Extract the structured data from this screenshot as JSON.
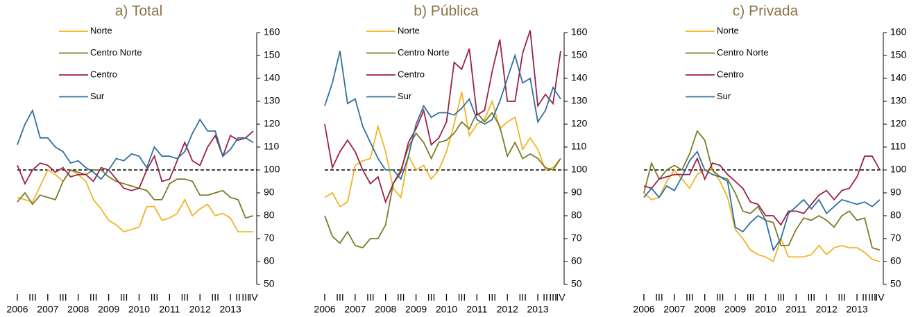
{
  "chart_data": [
    {
      "type": "line",
      "title": "a) Total",
      "categories": [
        "I",
        null,
        "III",
        null,
        "I",
        null,
        "III",
        null,
        "I",
        null,
        "III",
        null,
        "I",
        null,
        "III",
        null,
        "I",
        null,
        "III",
        null,
        "I",
        null,
        "III",
        null,
        "I",
        null,
        "III",
        null,
        "I",
        "II",
        "III",
        "IV"
      ],
      "year_labels": [
        "2006",
        "2007",
        "2008",
        "2009",
        "2010",
        "2011",
        "2012",
        "2013"
      ],
      "ylim": [
        50,
        160
      ],
      "yticks": [
        50,
        60,
        70,
        80,
        90,
        100,
        110,
        120,
        130,
        140,
        150,
        160
      ],
      "reference_line": 100,
      "series": [
        {
          "name": "Norte",
          "color": "#f0b323",
          "values": [
            88,
            87,
            86,
            93,
            100,
            98,
            95,
            100,
            98,
            95,
            87,
            83,
            78,
            76,
            73,
            74,
            75,
            84,
            84,
            78,
            79,
            81,
            87,
            80,
            83,
            85,
            80,
            81,
            79,
            73,
            73,
            73
          ]
        },
        {
          "name": "Centro Norte",
          "color": "#7b7a26",
          "values": [
            86,
            90,
            85,
            89,
            88,
            87,
            95,
            100,
            99,
            98,
            100,
            100,
            97,
            95,
            94,
            93,
            92,
            91,
            87,
            87,
            94,
            96,
            96,
            95,
            89,
            89,
            90,
            91,
            88,
            87,
            79,
            80
          ]
        },
        {
          "name": "Centro",
          "color": "#9b1f45",
          "values": [
            102,
            94,
            100,
            103,
            102,
            99,
            101,
            97,
            98,
            98,
            95,
            101,
            100,
            96,
            92,
            91,
            92,
            100,
            106,
            95,
            96,
            104,
            112,
            104,
            102,
            110,
            115,
            106,
            115,
            113,
            114,
            117
          ]
        },
        {
          "name": "Sur",
          "color": "#2f6f9f",
          "values": [
            111,
            120,
            126,
            114,
            114,
            110,
            108,
            103,
            104,
            101,
            99,
            96,
            100,
            105,
            104,
            107,
            106,
            101,
            110,
            106,
            106,
            105,
            108,
            116,
            122,
            117,
            117,
            106,
            109,
            114,
            114,
            112
          ]
        }
      ]
    },
    {
      "type": "line",
      "title": "b) Pública",
      "categories": [
        "I",
        null,
        "III",
        null,
        "I",
        null,
        "III",
        null,
        "I",
        null,
        "III",
        null,
        "I",
        null,
        "III",
        null,
        "I",
        null,
        "III",
        null,
        "I",
        null,
        "III",
        null,
        "I",
        null,
        "III",
        null,
        "I",
        "II",
        "III",
        "IV"
      ],
      "year_labels": [
        "2006",
        "2007",
        "2008",
        "2009",
        "2010",
        "2011",
        "2012",
        "2013"
      ],
      "ylim": [
        50,
        160
      ],
      "yticks": [
        50,
        60,
        70,
        80,
        90,
        100,
        110,
        120,
        130,
        140,
        150,
        160
      ],
      "reference_line": 100,
      "series": [
        {
          "name": "Norte",
          "color": "#f0b323",
          "values": [
            88,
            90,
            84,
            86,
            102,
            104,
            105,
            119,
            108,
            92,
            88,
            106,
            100,
            102,
            96,
            100,
            108,
            120,
            134,
            115,
            120,
            122,
            130,
            118,
            121,
            123,
            109,
            114,
            109,
            100,
            101,
            105
          ]
        },
        {
          "name": "Centro Norte",
          "color": "#7b7a26",
          "values": [
            80,
            71,
            68,
            73,
            67,
            66,
            70,
            70,
            76,
            94,
            100,
            110,
            116,
            112,
            105,
            112,
            113,
            116,
            121,
            118,
            125,
            121,
            125,
            119,
            106,
            112,
            105,
            107,
            105,
            101,
            100,
            105
          ]
        },
        {
          "name": "Centro",
          "color": "#9b1f45",
          "values": [
            120,
            101,
            108,
            113,
            108,
            100,
            94,
            97,
            86,
            94,
            99,
            112,
            118,
            126,
            111,
            114,
            121,
            147,
            144,
            153,
            124,
            126,
            143,
            157,
            130,
            130,
            151,
            161,
            128,
            133,
            129,
            152
          ]
        },
        {
          "name": "Sur",
          "color": "#2f6f9f",
          "values": [
            128,
            138,
            152,
            129,
            131,
            119,
            112,
            105,
            100,
            100,
            96,
            106,
            120,
            128,
            123,
            125,
            125,
            124,
            127,
            131,
            122,
            120,
            122,
            130,
            140,
            150,
            138,
            140,
            121,
            126,
            136,
            131
          ]
        }
      ]
    },
    {
      "type": "line",
      "title": "c) Privada",
      "categories": [
        "I",
        null,
        "III",
        null,
        "I",
        null,
        "III",
        null,
        "I",
        null,
        "III",
        null,
        "I",
        null,
        "III",
        null,
        "I",
        null,
        "III",
        null,
        "I",
        null,
        "III",
        null,
        "I",
        null,
        "III",
        null,
        "I",
        "II",
        "III",
        "IV"
      ],
      "year_labels": [
        "2006",
        "2007",
        "2008",
        "2009",
        "2010",
        "2011",
        "2012",
        "2013"
      ],
      "ylim": [
        50,
        160
      ],
      "yticks": [
        50,
        60,
        70,
        80,
        90,
        100,
        110,
        120,
        130,
        140,
        150,
        160
      ],
      "reference_line": 100,
      "series": [
        {
          "name": "Norte",
          "color": "#f0b323",
          "values": [
            90,
            87,
            88,
            95,
            100,
            96,
            92,
            98,
            100,
            100,
            95,
            88,
            74,
            70,
            65,
            63,
            62,
            60,
            70,
            62,
            62,
            62,
            63,
            67,
            63,
            66,
            67,
            66,
            66,
            64,
            61,
            60
          ]
        },
        {
          "name": "Centro Norte",
          "color": "#7b7a26",
          "values": [
            90,
            103,
            96,
            100,
            102,
            100,
            107,
            117,
            113,
            100,
            97,
            96,
            90,
            82,
            81,
            84,
            78,
            77,
            67,
            67,
            74,
            79,
            78,
            80,
            78,
            75,
            80,
            82,
            78,
            79,
            66,
            65
          ]
        },
        {
          "name": "Centro",
          "color": "#9b1f45",
          "values": [
            93,
            92,
            96,
            97,
            98,
            98,
            98,
            105,
            96,
            103,
            102,
            98,
            95,
            92,
            86,
            85,
            80,
            80,
            76,
            82,
            82,
            81,
            85,
            89,
            91,
            87,
            91,
            92,
            97,
            106,
            106,
            100
          ]
        },
        {
          "name": "Sur",
          "color": "#2f6f9f",
          "values": [
            88,
            92,
            88,
            93,
            91,
            97,
            104,
            108,
            100,
            98,
            97,
            95,
            75,
            73,
            77,
            80,
            78,
            65,
            70,
            81,
            84,
            87,
            83,
            87,
            81,
            84,
            87,
            86,
            85,
            86,
            84,
            87
          ]
        }
      ]
    }
  ]
}
